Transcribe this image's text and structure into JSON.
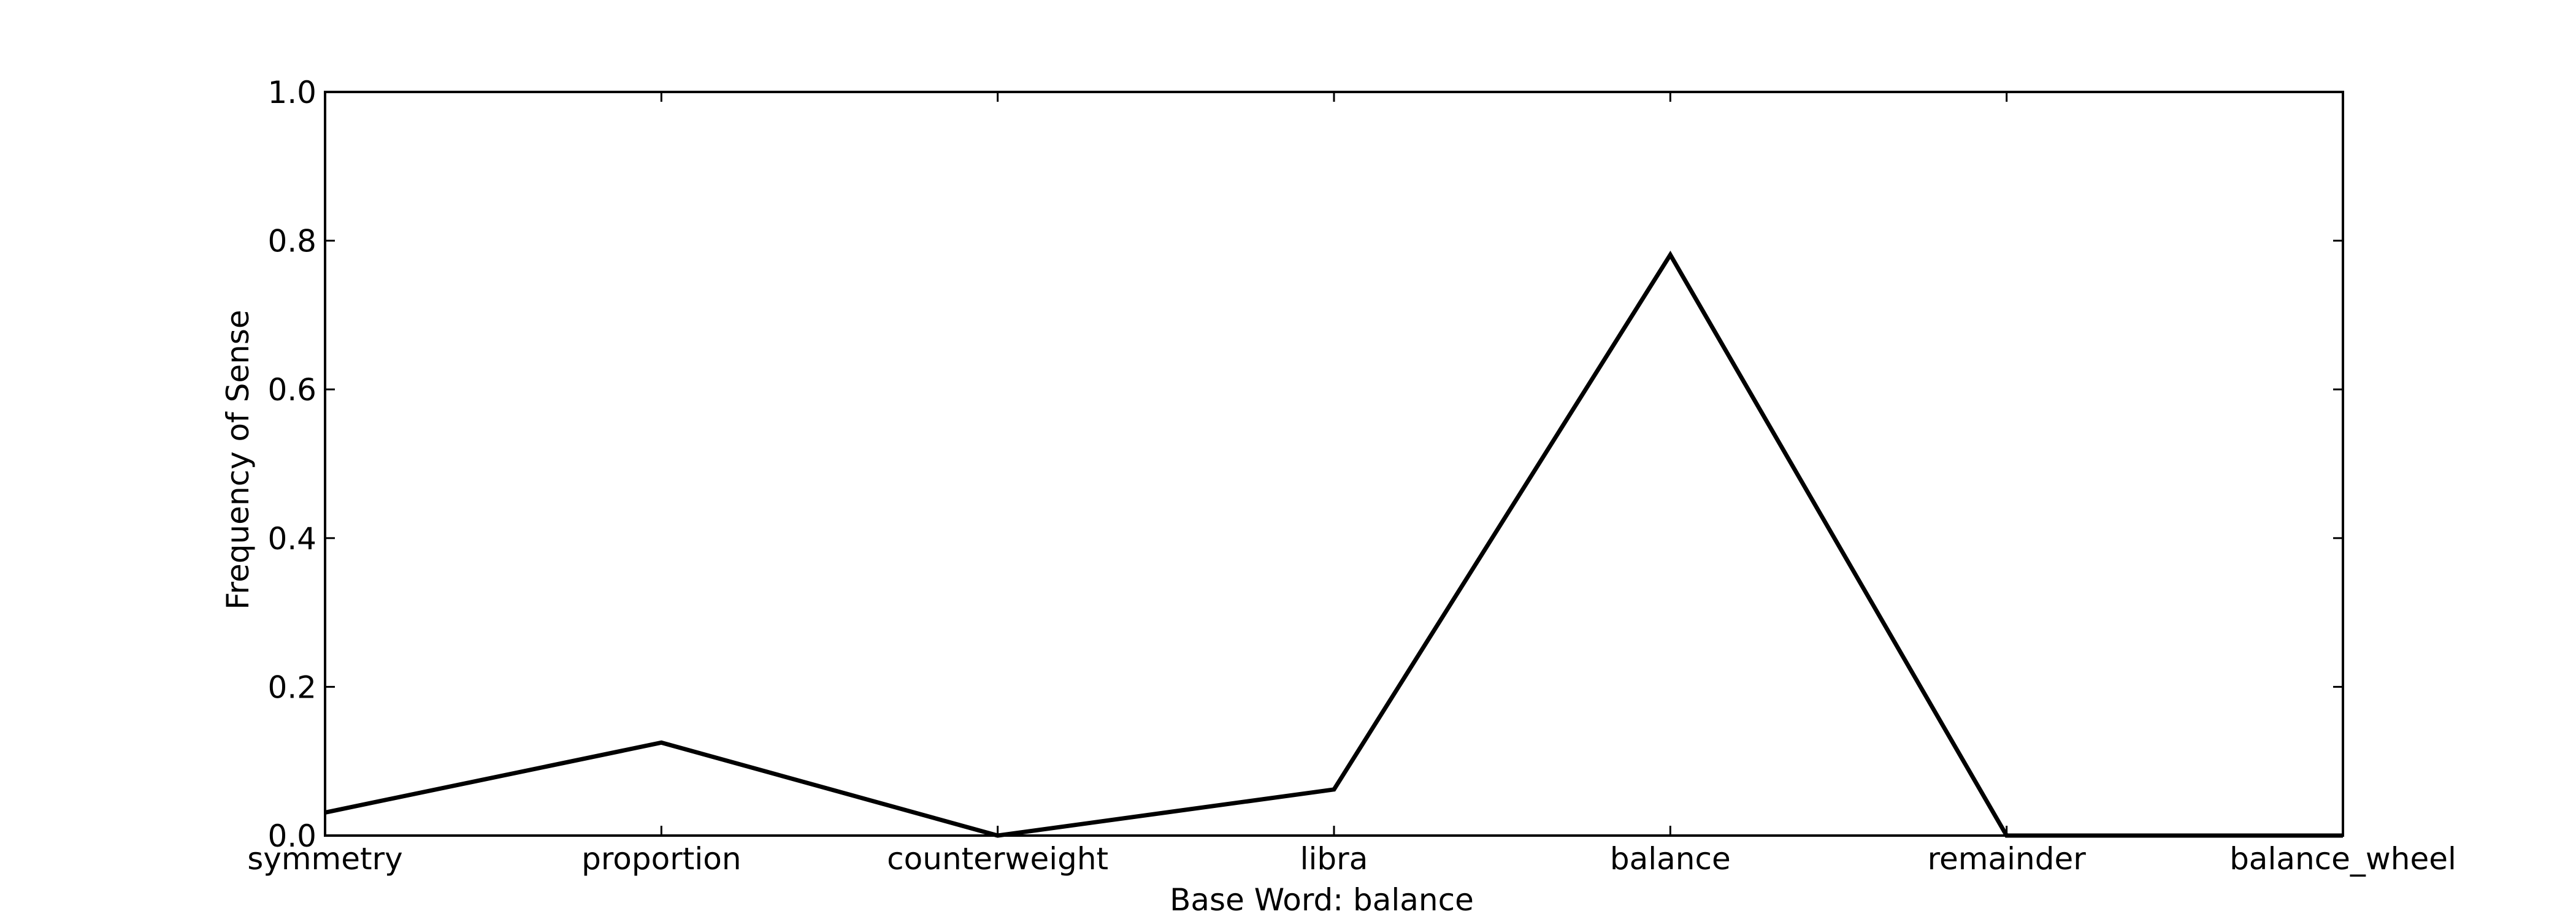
{
  "chart_data": {
    "type": "line",
    "title": "",
    "xlabel": "Base Word: balance",
    "ylabel": "Frequency of Sense",
    "categories": [
      "symmetry",
      "proportion",
      "counterweight",
      "libra",
      "balance",
      "remainder",
      "balance_wheel"
    ],
    "series": [
      {
        "values": [
          0.031,
          0.125,
          0.0,
          0.062,
          0.781,
          0.0,
          0.0
        ],
        "color": "#000000"
      }
    ],
    "ylim": [
      0.0,
      1.0
    ],
    "yticks": [
      "0.0",
      "0.2",
      "0.4",
      "0.6",
      "0.8",
      "1.0"
    ],
    "grid": false,
    "legend": "none"
  }
}
